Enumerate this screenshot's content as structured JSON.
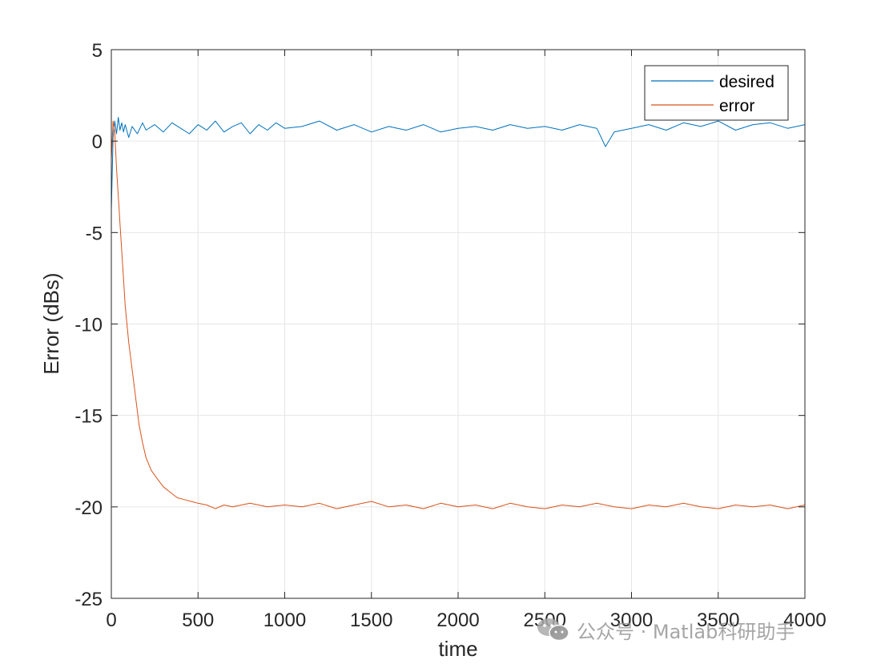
{
  "chart_data": {
    "type": "line",
    "title": "",
    "xlabel": "time",
    "ylabel": "Error (dBs)",
    "xlim": [
      0,
      4000
    ],
    "ylim": [
      -25,
      5
    ],
    "xticks": [
      0,
      500,
      1000,
      1500,
      2000,
      2500,
      3000,
      3500,
      4000
    ],
    "yticks": [
      5,
      0,
      -5,
      -10,
      -15,
      -20,
      -25
    ],
    "grid": true,
    "legend": {
      "placement": "top-right",
      "entries": [
        "desired",
        "error"
      ]
    },
    "series": [
      {
        "name": "desired",
        "color": "#0072BD",
        "x": [
          0,
          10,
          20,
          30,
          40,
          50,
          60,
          70,
          80,
          100,
          120,
          150,
          180,
          200,
          250,
          300,
          350,
          400,
          450,
          500,
          550,
          600,
          650,
          700,
          750,
          800,
          850,
          900,
          950,
          1000,
          1100,
          1200,
          1300,
          1400,
          1500,
          1600,
          1700,
          1800,
          1900,
          2000,
          2100,
          2200,
          2300,
          2400,
          2500,
          2600,
          2700,
          2800,
          2850,
          2900,
          3000,
          3100,
          3200,
          3300,
          3400,
          3500,
          3600,
          3700,
          3800,
          3900,
          4000
        ],
        "y": [
          -3.8,
          0.2,
          1.1,
          0.4,
          1.3,
          0.6,
          1.0,
          0.5,
          0.9,
          0.2,
          0.8,
          0.4,
          1.0,
          0.6,
          0.9,
          0.5,
          1.0,
          0.7,
          0.4,
          0.9,
          0.6,
          1.1,
          0.5,
          0.8,
          1.0,
          0.4,
          0.9,
          0.6,
          1.0,
          0.7,
          0.8,
          1.1,
          0.6,
          0.9,
          0.5,
          0.8,
          0.6,
          0.9,
          0.5,
          0.7,
          0.8,
          0.6,
          0.9,
          0.7,
          0.8,
          0.6,
          0.9,
          0.7,
          -0.3,
          0.5,
          0.7,
          0.9,
          0.6,
          1.0,
          0.8,
          1.1,
          0.6,
          0.9,
          1.0,
          0.7,
          0.9
        ]
      },
      {
        "name": "error",
        "color": "#D95319",
        "x": [
          0,
          10,
          20,
          30,
          40,
          50,
          60,
          70,
          80,
          100,
          120,
          140,
          160,
          180,
          200,
          230,
          260,
          300,
          340,
          380,
          420,
          460,
          500,
          550,
          600,
          650,
          700,
          800,
          900,
          1000,
          1100,
          1200,
          1300,
          1400,
          1500,
          1600,
          1700,
          1800,
          1900,
          2000,
          2100,
          2200,
          2300,
          2400,
          2500,
          2600,
          2700,
          2800,
          2900,
          3000,
          3100,
          3200,
          3300,
          3400,
          3500,
          3600,
          3700,
          3800,
          3900,
          4000
        ],
        "y": [
          -1.0,
          1.1,
          0.5,
          -1.5,
          -3.0,
          -4.5,
          -6.0,
          -7.5,
          -9.0,
          -11.0,
          -12.5,
          -14.0,
          -15.5,
          -16.5,
          -17.3,
          -18.0,
          -18.4,
          -18.9,
          -19.2,
          -19.5,
          -19.6,
          -19.7,
          -19.8,
          -19.9,
          -20.1,
          -19.9,
          -20.0,
          -19.8,
          -20.0,
          -19.9,
          -20.0,
          -19.8,
          -20.1,
          -19.9,
          -19.7,
          -20.0,
          -19.9,
          -20.1,
          -19.8,
          -20.0,
          -19.9,
          -20.1,
          -19.8,
          -20.0,
          -20.1,
          -19.9,
          -20.0,
          -19.8,
          -20.0,
          -20.1,
          -19.9,
          -20.0,
          -19.8,
          -20.0,
          -20.1,
          -19.9,
          -20.0,
          -19.9,
          -20.1,
          -19.9
        ]
      }
    ]
  },
  "watermark": {
    "text": "公众号 · Matlab科研助手",
    "icon": "wechat-icon"
  }
}
